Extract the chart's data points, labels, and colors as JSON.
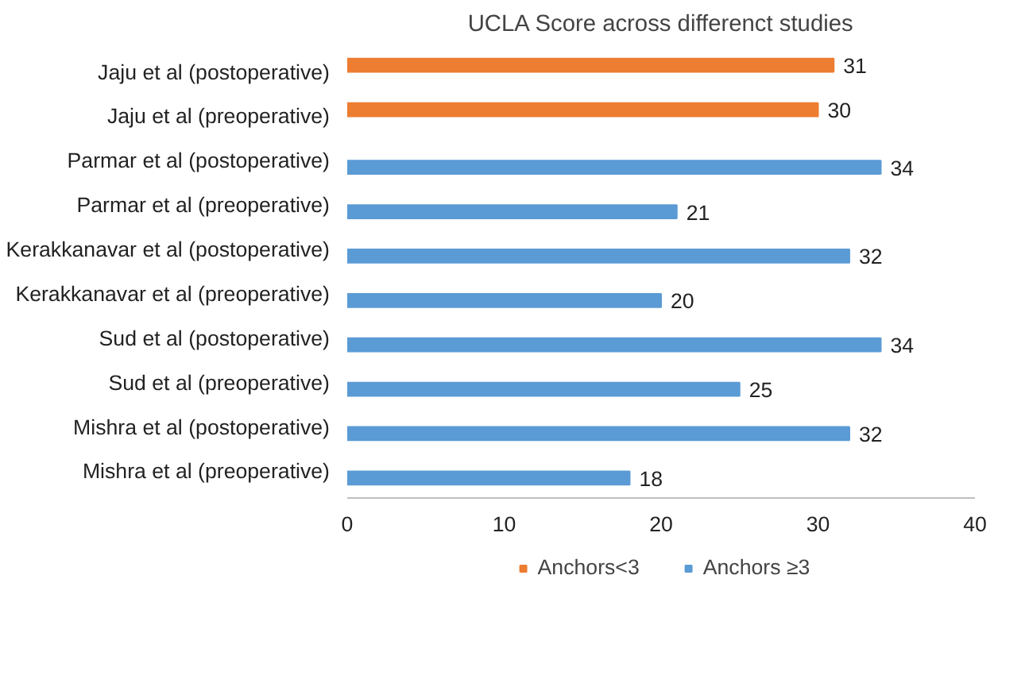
{
  "chart_data": {
    "type": "bar",
    "orientation": "horizontal",
    "title": "UCLA Score across differenct studies",
    "categories": [
      "Jaju et al (postoperative)",
      "Jaju et al (preoperative)",
      "Parmar et al (postoperative)",
      "Parmar et al (preoperative)",
      "Kerakkanavar et al (postoperative)",
      "Kerakkanavar et al (preoperative)",
      "Sud et al (postoperative)",
      "Sud et al (preoperative)",
      "Mishra et al (postoperative)",
      "Mishra et al (preoperative)"
    ],
    "series": [
      {
        "name": "Anchors<3",
        "color": "#ed7d31",
        "values": [
          31,
          30,
          null,
          null,
          null,
          null,
          null,
          null,
          null,
          null
        ]
      },
      {
        "name": "Anchors ≥3",
        "color": "#5b9bd5",
        "values": [
          null,
          null,
          34,
          21,
          32,
          20,
          34,
          25,
          32,
          18
        ]
      }
    ],
    "xlim": [
      0,
      40
    ],
    "xticks": [
      0,
      10,
      20,
      30,
      40
    ],
    "grid": false,
    "legend": "bottom",
    "data_labels": true
  }
}
